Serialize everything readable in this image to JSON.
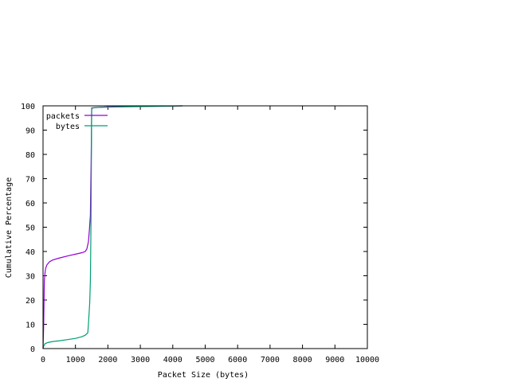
{
  "chart_data": {
    "type": "line",
    "title": "",
    "xlabel": "Packet Size (bytes)",
    "ylabel": "Cumulative Percentage",
    "xlim": [
      0,
      10000
    ],
    "ylim": [
      0,
      100
    ],
    "xticks": [
      0,
      1000,
      2000,
      3000,
      4000,
      5000,
      6000,
      7000,
      8000,
      9000,
      10000
    ],
    "yticks": [
      0,
      10,
      20,
      30,
      40,
      50,
      60,
      70,
      80,
      90,
      100
    ],
    "grid": false,
    "legend_position": "top-left",
    "series": [
      {
        "name": "packets",
        "color": "#9400d3",
        "points": [
          [
            0,
            0
          ],
          [
            20,
            10
          ],
          [
            40,
            28
          ],
          [
            60,
            31
          ],
          [
            80,
            33
          ],
          [
            120,
            34.5
          ],
          [
            200,
            35.8
          ],
          [
            300,
            36.5
          ],
          [
            500,
            37.3
          ],
          [
            800,
            38.3
          ],
          [
            1000,
            38.9
          ],
          [
            1200,
            39.5
          ],
          [
            1300,
            40
          ],
          [
            1350,
            41
          ],
          [
            1400,
            44
          ],
          [
            1430,
            49
          ],
          [
            1460,
            55
          ],
          [
            1470,
            65
          ],
          [
            1480,
            74
          ],
          [
            1490,
            85
          ],
          [
            1500,
            99
          ],
          [
            1600,
            99.3
          ],
          [
            2000,
            99.6
          ],
          [
            3000,
            99.8
          ],
          [
            4300,
            100
          ]
        ]
      },
      {
        "name": "bytes",
        "color": "#009e73",
        "points": [
          [
            0,
            0
          ],
          [
            20,
            1
          ],
          [
            60,
            2
          ],
          [
            150,
            2.5
          ],
          [
            300,
            2.9
          ],
          [
            500,
            3.2
          ],
          [
            800,
            3.8
          ],
          [
            1000,
            4.2
          ],
          [
            1200,
            4.9
          ],
          [
            1300,
            5.5
          ],
          [
            1380,
            6.5
          ],
          [
            1400,
            10
          ],
          [
            1440,
            19
          ],
          [
            1460,
            28
          ],
          [
            1470,
            40
          ],
          [
            1480,
            55
          ],
          [
            1490,
            75
          ],
          [
            1500,
            99.2
          ],
          [
            1800,
            99.4
          ],
          [
            2500,
            99.6
          ],
          [
            3500,
            99.8
          ],
          [
            4300,
            100
          ]
        ]
      }
    ]
  }
}
